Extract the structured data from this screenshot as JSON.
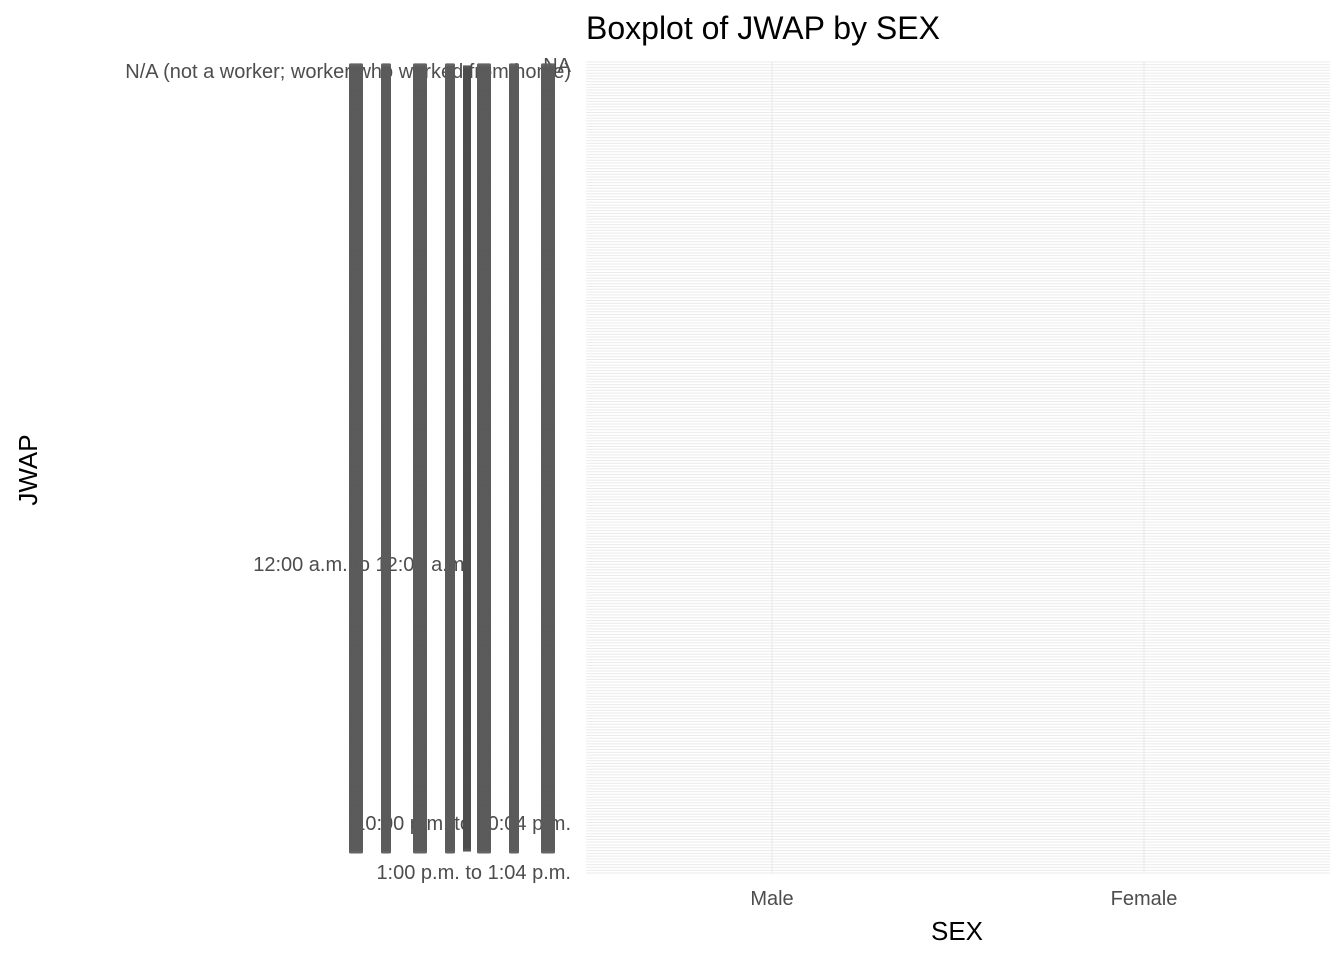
{
  "chart_data": {
    "type": "boxplot",
    "title": "Boxplot of JWAP by SEX",
    "xlabel": "SEX",
    "ylabel": "JWAP",
    "categories": [
      "Male",
      "Female"
    ],
    "y_tick_labels": [
      "1:00 p.m. to 1:04 p.m.",
      "10:00 p.m. to 10:04 p.m.",
      "12:00 a.m. to 12:04 a.m.",
      "N/A (not a worker; worker who worked from home)",
      "NA"
    ],
    "y_tick_count": 290,
    "grid": true,
    "legend": "none"
  }
}
